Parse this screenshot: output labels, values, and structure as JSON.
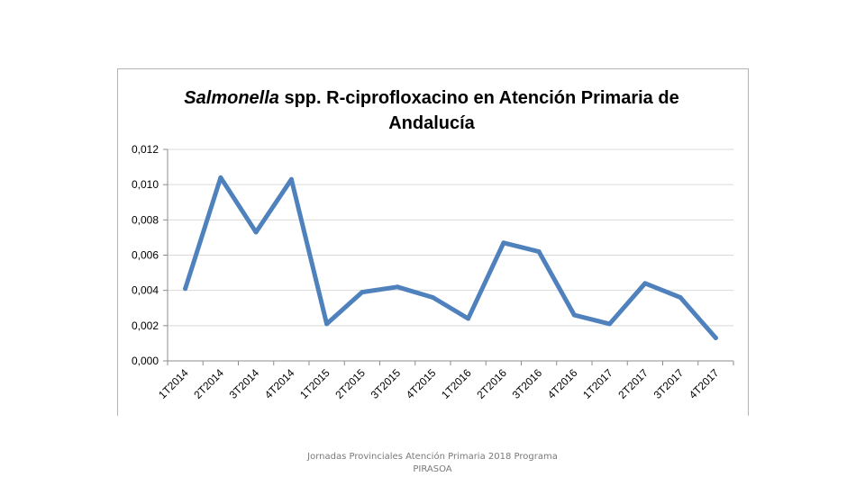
{
  "chart_data": {
    "type": "line",
    "title_italic": "Salmonella",
    "title_rest": " spp. R-ciprofloxacino en Atención Primaria de",
    "title_line2": "Andalucía",
    "xlabel": "",
    "ylabel": "",
    "ylim": [
      0,
      0.012
    ],
    "grid": true,
    "legend": "none",
    "categories": [
      "1T2014",
      "2T2014",
      "3T2014",
      "4T2014",
      "1T2015",
      "2T2015",
      "3T2015",
      "4T2015",
      "1T2016",
      "2T2016",
      "3T2016",
      "4T2016",
      "1T2017",
      "2T2017",
      "3T2017",
      "4T2017"
    ],
    "y_ticks": [
      "0,000",
      "0,002",
      "0,004",
      "0,006",
      "0,008",
      "0,010",
      "0,012"
    ],
    "series": [
      {
        "name": "Salmonella spp. R-ciprofloxacino",
        "color": "#4f81bd",
        "values": [
          0.0041,
          0.0104,
          0.0073,
          0.0103,
          0.0021,
          0.0039,
          0.0042,
          0.0036,
          0.0024,
          0.0067,
          0.0062,
          0.0026,
          0.0021,
          0.0044,
          0.0036,
          0.0013
        ]
      }
    ]
  },
  "footer": {
    "line1": "Jornadas Provinciales Atención Primaria 2018  Programa",
    "line2": "PIRASOA"
  }
}
